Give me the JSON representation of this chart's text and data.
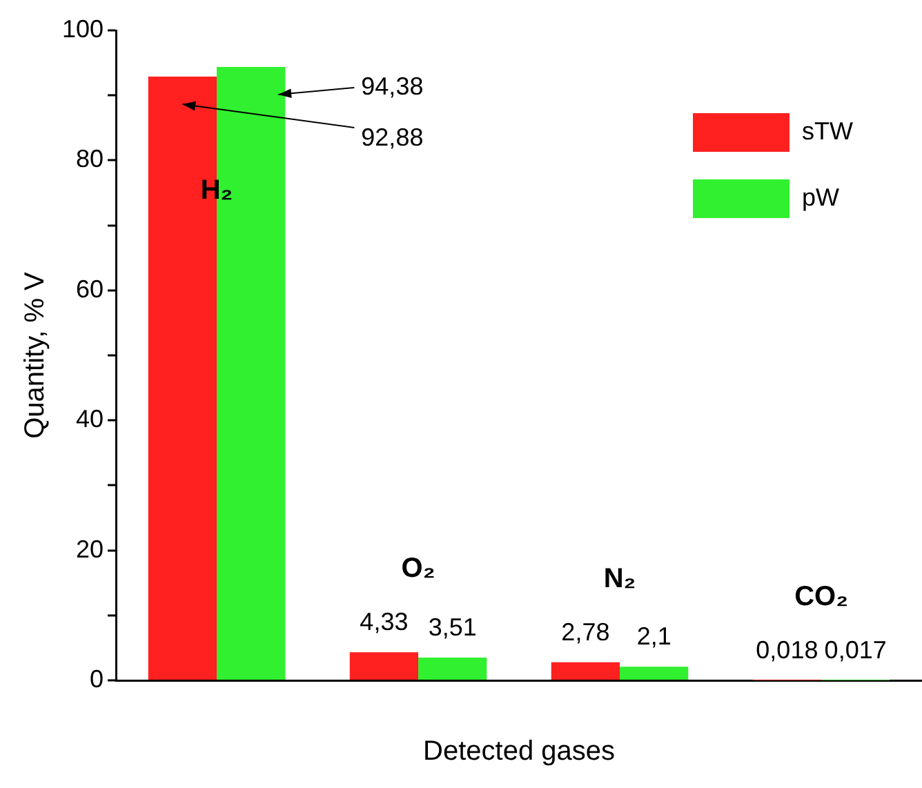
{
  "chart_data": {
    "type": "bar",
    "xlabel": "Detected gases",
    "ylabel": "Quantity, % V",
    "categories": [
      "H₂",
      "O₂",
      "N₂",
      "CO₂"
    ],
    "series": [
      {
        "name": "sTW",
        "color": "#ff2020",
        "values": [
          92.88,
          4.33,
          2.78,
          0.018
        ],
        "value_labels": [
          "92,88",
          "4,33",
          "2,78",
          "0,018"
        ]
      },
      {
        "name": "pW",
        "color": "#30f030",
        "values": [
          94.38,
          3.51,
          2.1,
          0.017
        ],
        "value_labels": [
          "94,38",
          "3,51",
          "2,1",
          "0,017"
        ]
      }
    ],
    "ylim": [
      0,
      100
    ],
    "yticks": [
      0,
      {
        "value": 10,
        "label": null
      },
      20,
      {
        "value": 30,
        "label": null
      },
      40,
      {
        "value": 50,
        "label": null
      },
      60,
      {
        "value": 70,
        "label": null
      },
      80,
      {
        "value": 90,
        "label": null
      },
      100
    ],
    "tick_labels": "y",
    "grid": false,
    "legend": "top right"
  }
}
